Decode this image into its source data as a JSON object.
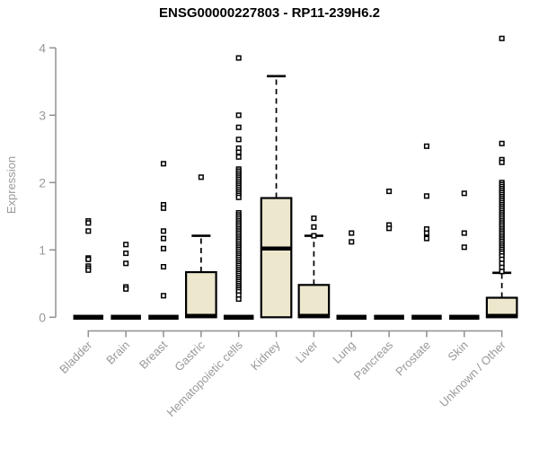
{
  "header": {
    "title": "ENSG00000227803 - RP11-239H6.2"
  },
  "chart_data": {
    "type": "boxplot",
    "title": "ENSG00000227803 - RP11-239H6.2",
    "xlabel": "",
    "ylabel": "Expression",
    "ylim": [
      0,
      4
    ],
    "yticks": [
      0,
      1,
      2,
      3,
      4
    ],
    "grid": false,
    "legend": false,
    "colors": {
      "box_fill": "#ECE7CD",
      "box_stroke": "#000000",
      "median": "#000000",
      "whisker": "#000000",
      "outlier": "#000000",
      "axis": "#909090",
      "tick_label": "#999999",
      "title": "#000000"
    },
    "categories": [
      "Bladder",
      "Brain",
      "Breast",
      "Gastric",
      "Hematopoietic cells",
      "Kidney",
      "Liver",
      "Lung",
      "Pancreas",
      "Prostate",
      "Skin",
      "Unknown / Other"
    ],
    "series": [
      {
        "name": "Bladder",
        "box": {
          "lo": 0,
          "q1": 0,
          "med": 0,
          "q3": 0,
          "hi": 0
        },
        "outliers": [
          1.43,
          1.4,
          1.28,
          0.88,
          0.86,
          0.76,
          0.73,
          0.7
        ]
      },
      {
        "name": "Brain",
        "box": {
          "lo": 0,
          "q1": 0,
          "med": 0,
          "q3": 0,
          "hi": 0
        },
        "outliers": [
          1.08,
          0.95,
          0.8,
          0.45,
          0.42
        ]
      },
      {
        "name": "Breast",
        "box": {
          "lo": 0,
          "q1": 0,
          "med": 0,
          "q3": 0,
          "hi": 0
        },
        "outliers": [
          2.28,
          1.67,
          1.62,
          1.28,
          1.17,
          1.02,
          0.75,
          0.32
        ]
      },
      {
        "name": "Gastric",
        "box": {
          "lo": 0,
          "q1": 0,
          "med": 0.01,
          "q3": 0.67,
          "hi": 1.21
        },
        "outliers": [
          2.08
        ]
      },
      {
        "name": "Hematopoietic cells",
        "box": {
          "lo": 0,
          "q1": 0,
          "med": 0,
          "q3": 0,
          "hi": 0
        },
        "outliers": [
          3.85,
          3.0,
          2.82,
          2.64,
          2.51,
          2.45,
          2.38,
          2.2,
          2.17,
          2.14,
          2.11,
          2.08,
          2.05,
          2.02,
          1.99,
          1.96,
          1.93,
          1.9,
          1.87,
          1.84,
          1.81,
          1.78,
          1.55,
          1.52,
          1.49,
          1.46,
          1.43,
          1.4,
          1.37,
          1.34,
          1.31,
          1.28,
          1.25,
          1.22,
          1.19,
          1.16,
          1.13,
          1.1,
          1.07,
          1.04,
          1.01,
          0.98,
          0.95,
          0.92,
          0.89,
          0.86,
          0.83,
          0.8,
          0.77,
          0.74,
          0.71,
          0.68,
          0.65,
          0.62,
          0.59,
          0.56,
          0.53,
          0.5,
          0.47,
          0.44,
          0.41,
          0.38,
          0.33,
          0.27
        ]
      },
      {
        "name": "Kidney",
        "box": {
          "lo": 0,
          "q1": 0,
          "med": 1.02,
          "q3": 1.77,
          "hi": 3.58
        },
        "outliers": []
      },
      {
        "name": "Liver",
        "box": {
          "lo": 0,
          "q1": 0,
          "med": 0.01,
          "q3": 0.48,
          "hi": 1.21
        },
        "outliers": [
          1.47,
          1.34,
          1.21
        ]
      },
      {
        "name": "Lung",
        "box": {
          "lo": 0,
          "q1": 0,
          "med": 0,
          "q3": 0,
          "hi": 0
        },
        "outliers": [
          1.25,
          1.12
        ]
      },
      {
        "name": "Pancreas",
        "box": {
          "lo": 0,
          "q1": 0,
          "med": 0,
          "q3": 0,
          "hi": 0
        },
        "outliers": [
          1.87,
          1.37,
          1.32
        ]
      },
      {
        "name": "Prostate",
        "box": {
          "lo": 0,
          "q1": 0,
          "med": 0,
          "q3": 0,
          "hi": 0
        },
        "outliers": [
          2.54,
          1.8,
          1.31,
          1.25,
          1.17
        ]
      },
      {
        "name": "Skin",
        "box": {
          "lo": 0,
          "q1": 0,
          "med": 0,
          "q3": 0,
          "hi": 0
        },
        "outliers": [
          1.84,
          1.25,
          1.04
        ]
      },
      {
        "name": "Unknown / Other",
        "box": {
          "lo": 0,
          "q1": 0,
          "med": 0.01,
          "q3": 0.29,
          "hi": 0.66
        },
        "outliers": [
          4.14,
          2.58,
          2.34,
          2.3,
          2.0,
          1.97,
          1.94,
          1.91,
          1.88,
          1.85,
          1.82,
          1.79,
          1.76,
          1.73,
          1.7,
          1.67,
          1.64,
          1.61,
          1.58,
          1.55,
          1.52,
          1.49,
          1.46,
          1.43,
          1.4,
          1.37,
          1.34,
          1.31,
          1.28,
          1.25,
          1.22,
          1.19,
          1.16,
          1.13,
          1.1,
          1.07,
          1.04,
          1.01,
          0.98,
          0.95,
          0.91,
          0.86,
          0.8,
          0.74,
          0.68
        ]
      }
    ]
  }
}
